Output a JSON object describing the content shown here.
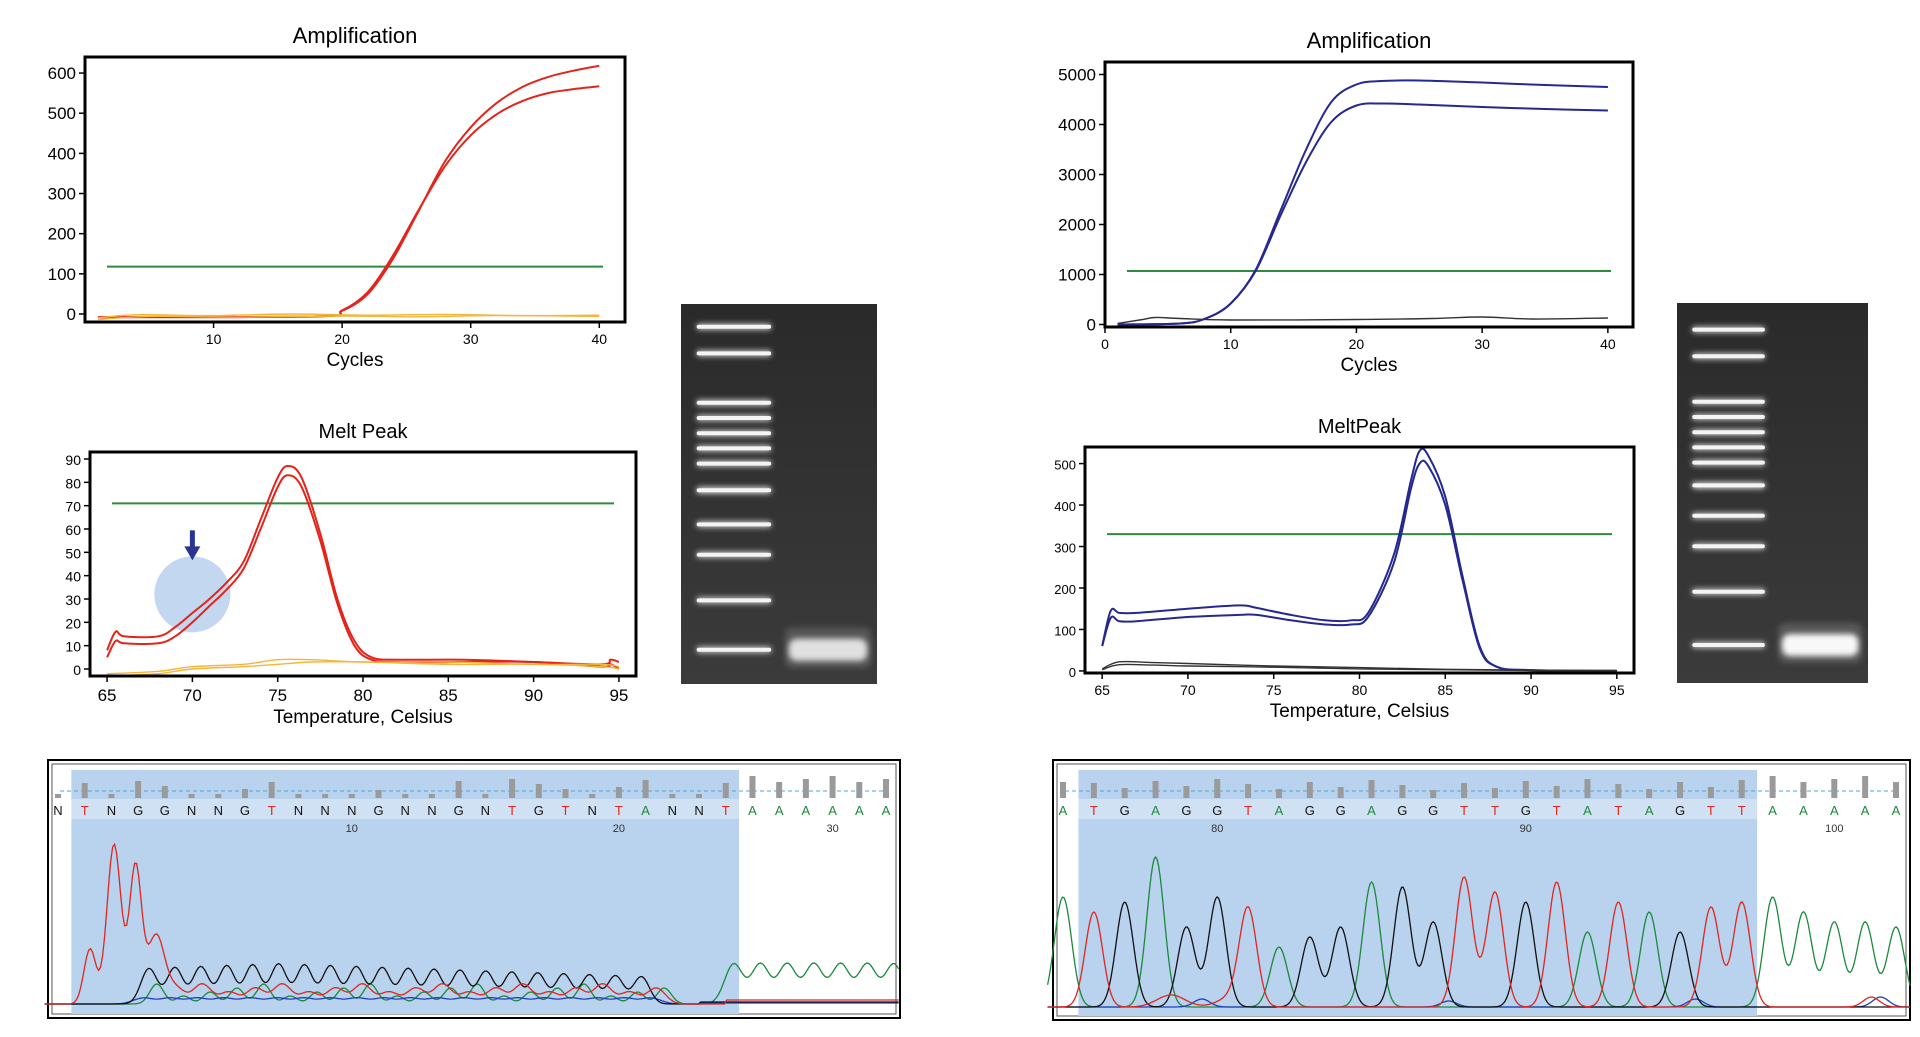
{
  "chart_data": [
    {
      "id": "left-amp",
      "type": "line",
      "title": "Amplification",
      "xlabel": "Cycles",
      "ylabel": "",
      "xlim": [
        0,
        42
      ],
      "ylim": [
        -20,
        640
      ],
      "xticks": [
        10,
        20,
        30,
        40
      ],
      "yticks": [
        0,
        100,
        200,
        300,
        400,
        500,
        600
      ],
      "threshold": 118,
      "colors": {
        "threshold": "#2e8b3e",
        "sample": "#e3241b",
        "control": "#f5b43a"
      },
      "series": [
        {
          "role": "sample",
          "values": [
            [
              1,
              -8
            ],
            [
              18,
              -6
            ],
            [
              20,
              8
            ],
            [
              22,
              50
            ],
            [
              24,
              140
            ],
            [
              26,
              260
            ],
            [
              28,
              380
            ],
            [
              30,
              465
            ],
            [
              32,
              525
            ],
            [
              34,
              565
            ],
            [
              36,
              590
            ],
            [
              38,
              606
            ],
            [
              40,
              618
            ]
          ]
        },
        {
          "role": "sample",
          "values": [
            [
              1,
              -8
            ],
            [
              18,
              -6
            ],
            [
              20,
              9
            ],
            [
              22,
              55
            ],
            [
              24,
              148
            ],
            [
              26,
              262
            ],
            [
              28,
              368
            ],
            [
              30,
              445
            ],
            [
              32,
              497
            ],
            [
              34,
              530
            ],
            [
              36,
              550
            ],
            [
              38,
              560
            ],
            [
              40,
              567
            ]
          ]
        },
        {
          "role": "control",
          "values": [
            [
              1,
              -10
            ],
            [
              4,
              -2
            ],
            [
              10,
              -4
            ],
            [
              16,
              0
            ],
            [
              22,
              -3
            ],
            [
              28,
              -1
            ],
            [
              34,
              -4
            ],
            [
              40,
              -3
            ]
          ]
        },
        {
          "role": "control",
          "values": [
            [
              1,
              -14
            ],
            [
              5,
              -6
            ],
            [
              12,
              -8
            ],
            [
              20,
              -5
            ],
            [
              26,
              -7
            ],
            [
              32,
              -4
            ],
            [
              40,
              -6
            ]
          ]
        }
      ]
    },
    {
      "id": "left-melt",
      "type": "line",
      "title": "Melt Peak",
      "xlabel": "Temperature, Celsius",
      "ylabel": "",
      "xlim": [
        64,
        96
      ],
      "ylim": [
        -3,
        93
      ],
      "xticks": [
        65,
        70,
        75,
        80,
        85,
        90,
        95
      ],
      "yticks": [
        0,
        10,
        20,
        30,
        40,
        50,
        60,
        70,
        80,
        90
      ],
      "threshold": 71,
      "colors": {
        "threshold": "#2e8b3e",
        "sample": "#e3241b",
        "control": "#f5b43a"
      },
      "series": [
        {
          "role": "sample",
          "values": [
            [
              65,
              8
            ],
            [
              65.5,
              16
            ],
            [
              66,
              14
            ],
            [
              68,
              14
            ],
            [
              69,
              18
            ],
            [
              70,
              24
            ],
            [
              71,
              30
            ],
            [
              72,
              37
            ],
            [
              73,
              46
            ],
            [
              74,
              64
            ],
            [
              75,
              82
            ],
            [
              75.6,
              87
            ],
            [
              76.4,
              82
            ],
            [
              77.5,
              58
            ],
            [
              78.5,
              30
            ],
            [
              79.5,
              12
            ],
            [
              80.5,
              5
            ],
            [
              82,
              4
            ],
            [
              86,
              4
            ],
            [
              90,
              3
            ],
            [
              94,
              2
            ],
            [
              94.5,
              4
            ],
            [
              95,
              3
            ]
          ]
        },
        {
          "role": "sample",
          "values": [
            [
              65,
              5
            ],
            [
              65.5,
              12
            ],
            [
              66,
              11
            ],
            [
              68,
              11
            ],
            [
              69,
              14
            ],
            [
              70,
              20
            ],
            [
              71,
              27
            ],
            [
              72,
              34
            ],
            [
              73,
              43
            ],
            [
              74,
              60
            ],
            [
              75,
              78
            ],
            [
              75.6,
              83
            ],
            [
              76.4,
              78
            ],
            [
              77.5,
              55
            ],
            [
              78.5,
              28
            ],
            [
              79.5,
              10
            ],
            [
              80.5,
              4
            ],
            [
              82,
              3
            ],
            [
              86,
              3
            ],
            [
              90,
              3
            ],
            [
              94,
              1
            ],
            [
              94.5,
              2
            ],
            [
              95,
              0
            ]
          ]
        },
        {
          "role": "control",
          "values": [
            [
              65,
              -2
            ],
            [
              68,
              -1
            ],
            [
              70,
              1
            ],
            [
              73,
              2
            ],
            [
              75,
              4
            ],
            [
              77,
              4
            ],
            [
              80,
              3
            ],
            [
              85,
              3
            ],
            [
              90,
              2
            ],
            [
              94,
              2
            ],
            [
              95,
              1
            ]
          ]
        },
        {
          "role": "control",
          "values": [
            [
              65,
              -3
            ],
            [
              68,
              -2
            ],
            [
              70,
              0
            ],
            [
              73,
              1
            ],
            [
              75,
              2
            ],
            [
              77,
              3
            ],
            [
              80,
              3
            ],
            [
              85,
              2
            ],
            [
              90,
              2
            ],
            [
              94,
              1
            ],
            [
              95,
              0
            ]
          ]
        }
      ],
      "annotation": {
        "arrow_color": "#2a3590",
        "circle_color": "#a9c6ea",
        "at": [
          70,
          32
        ]
      }
    },
    {
      "id": "right-amp",
      "type": "line",
      "title": "Amplification",
      "xlabel": "Cycles",
      "ylabel": "",
      "xlim": [
        0,
        42
      ],
      "ylim": [
        -50,
        5250
      ],
      "xticks": [
        0,
        10,
        20,
        30,
        40
      ],
      "yticks": [
        0,
        1000,
        2000,
        3000,
        4000,
        5000
      ],
      "threshold": 1070,
      "colors": {
        "threshold": "#2e8b3e",
        "sample": "#25288f",
        "control": "#333333"
      },
      "series": [
        {
          "role": "sample",
          "values": [
            [
              1,
              0
            ],
            [
              6,
              20
            ],
            [
              8,
              120
            ],
            [
              10,
              420
            ],
            [
              12,
              1100
            ],
            [
              14,
              2300
            ],
            [
              16,
              3500
            ],
            [
              18,
              4450
            ],
            [
              20,
              4800
            ],
            [
              22,
              4870
            ],
            [
              25,
              4880
            ],
            [
              30,
              4840
            ],
            [
              35,
              4790
            ],
            [
              40,
              4750
            ]
          ]
        },
        {
          "role": "sample",
          "values": [
            [
              1,
              0
            ],
            [
              6,
              20
            ],
            [
              8,
              120
            ],
            [
              10,
              420
            ],
            [
              12,
              1080
            ],
            [
              14,
              2200
            ],
            [
              16,
              3250
            ],
            [
              18,
              4050
            ],
            [
              20,
              4380
            ],
            [
              22,
              4420
            ],
            [
              25,
              4400
            ],
            [
              30,
              4350
            ],
            [
              35,
              4310
            ],
            [
              40,
              4280
            ]
          ]
        },
        {
          "role": "control",
          "values": [
            [
              1,
              20
            ],
            [
              3,
              100
            ],
            [
              4,
              140
            ],
            [
              6,
              120
            ],
            [
              10,
              90
            ],
            [
              20,
              100
            ],
            [
              26,
              120
            ],
            [
              30,
              150
            ],
            [
              34,
              110
            ],
            [
              40,
              130
            ]
          ]
        }
      ]
    },
    {
      "id": "right-melt",
      "type": "line",
      "title": "MeltPeak",
      "xlabel": "Temperature, Celsius",
      "ylabel": "",
      "xlim": [
        64,
        96
      ],
      "ylim": [
        -5,
        540
      ],
      "xticks": [
        65,
        70,
        75,
        80,
        85,
        90,
        95
      ],
      "yticks": [
        0,
        100,
        200,
        300,
        400,
        500
      ],
      "threshold": 330,
      "colors": {
        "threshold": "#2e8b3e",
        "sample": "#25288f",
        "control": "#333333"
      },
      "series": [
        {
          "role": "sample",
          "values": [
            [
              65,
              60
            ],
            [
              65.5,
              145
            ],
            [
              66,
              140
            ],
            [
              67,
              140
            ],
            [
              70,
              150
            ],
            [
              73,
              158
            ],
            [
              74,
              152
            ],
            [
              76,
              135
            ],
            [
              78,
              122
            ],
            [
              79.5,
              122
            ],
            [
              80.5,
              140
            ],
            [
              82,
              280
            ],
            [
              83,
              460
            ],
            [
              83.5,
              530
            ],
            [
              84,
              520
            ],
            [
              85,
              420
            ],
            [
              86,
              230
            ],
            [
              87,
              60
            ],
            [
              88,
              10
            ],
            [
              90,
              2
            ],
            [
              95,
              0
            ]
          ]
        },
        {
          "role": "sample",
          "values": [
            [
              65,
              60
            ],
            [
              65.5,
              128
            ],
            [
              66,
              120
            ],
            [
              67,
              120
            ],
            [
              70,
              130
            ],
            [
              73,
              135
            ],
            [
              74,
              135
            ],
            [
              76,
              122
            ],
            [
              78,
              112
            ],
            [
              79.5,
              112
            ],
            [
              80.5,
              130
            ],
            [
              82,
              260
            ],
            [
              83,
              440
            ],
            [
              83.5,
              500
            ],
            [
              84,
              495
            ],
            [
              85,
              400
            ],
            [
              86,
              220
            ],
            [
              87,
              55
            ],
            [
              88,
              10
            ],
            [
              90,
              2
            ],
            [
              95,
              0
            ]
          ]
        },
        {
          "role": "control",
          "values": [
            [
              65,
              5
            ],
            [
              66,
              22
            ],
            [
              68,
              20
            ],
            [
              70,
              18
            ],
            [
              75,
              12
            ],
            [
              80,
              8
            ],
            [
              85,
              4
            ],
            [
              90,
              2
            ],
            [
              95,
              1
            ]
          ]
        },
        {
          "role": "control",
          "values": [
            [
              65,
              3
            ],
            [
              66,
              15
            ],
            [
              68,
              14
            ],
            [
              70,
              12
            ],
            [
              75,
              9
            ],
            [
              80,
              5
            ],
            [
              85,
              3
            ],
            [
              90,
              1
            ],
            [
              95,
              0
            ]
          ]
        }
      ]
    },
    {
      "id": "left-chromatogram",
      "type": "line",
      "title": "",
      "colors": {
        "A": "#1a8a3a",
        "C": "#1f3fbf",
        "G": "#111111",
        "T": "#e0261f",
        "highlight": "#b9d2ee"
      },
      "base_calls": [
        "N",
        "T",
        "N",
        "G",
        "G",
        "N",
        "N",
        "G",
        "T",
        "N",
        "N",
        "N",
        "G",
        "N",
        "N",
        "G",
        "N",
        "T",
        "G",
        "T",
        "N",
        "T",
        "A",
        "N",
        "N",
        "T",
        "A",
        "A",
        "A",
        "A",
        "A",
        "A"
      ],
      "position_labels": [
        {
          "text": "10",
          "after_base": 11
        },
        {
          "text": "20",
          "after_base": 21
        },
        {
          "text": "30",
          "after_base": 29
        }
      ],
      "highlight_bases": [
        1,
        25
      ]
    },
    {
      "id": "right-chromatogram",
      "type": "line",
      "title": "",
      "colors": {
        "A": "#1a8a3a",
        "C": "#1f3fbf",
        "G": "#111111",
        "T": "#e0261f",
        "highlight": "#b9d2ee"
      },
      "base_calls": [
        "A",
        "T",
        "G",
        "A",
        "G",
        "G",
        "T",
        "A",
        "G",
        "G",
        "A",
        "G",
        "G",
        "T",
        "T",
        "G",
        "T",
        "A",
        "T",
        "A",
        "G",
        "T",
        "T",
        "A",
        "A",
        "A",
        "A",
        "A"
      ],
      "position_labels": [
        {
          "text": "80",
          "after_base": 5
        },
        {
          "text": "90",
          "after_base": 15
        },
        {
          "text": "100",
          "after_base": 25
        }
      ],
      "highlight_bases": [
        1,
        22
      ]
    }
  ],
  "gels": [
    {
      "id": "left-gel",
      "ladder_bands": [
        0.06,
        0.13,
        0.26,
        0.3,
        0.34,
        0.38,
        0.42,
        0.49,
        0.58,
        0.66,
        0.78,
        0.91
      ],
      "sample_band": 0.91,
      "sample_intensity": 0.85
    },
    {
      "id": "right-gel",
      "ladder_bands": [
        0.07,
        0.14,
        0.26,
        0.3,
        0.34,
        0.38,
        0.42,
        0.48,
        0.56,
        0.64,
        0.76,
        0.9
      ],
      "sample_band": 0.9,
      "sample_intensity": 1.0
    }
  ]
}
